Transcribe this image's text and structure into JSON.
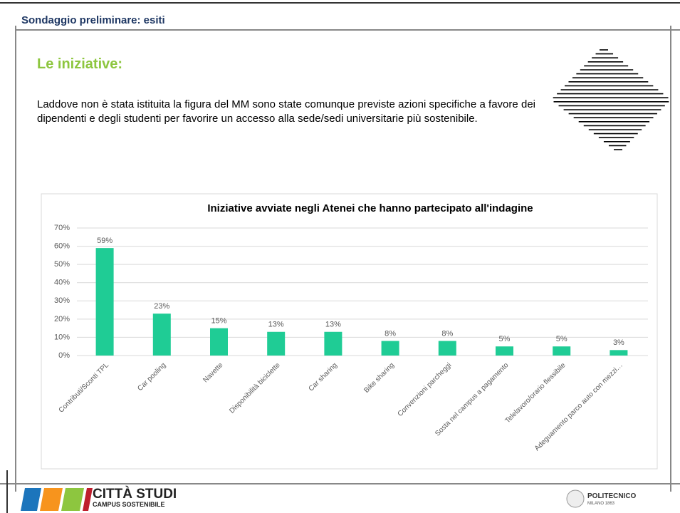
{
  "header": {
    "title": "Sondaggio preliminare: esiti"
  },
  "section_title": "Le iniziative:",
  "paragraph": "Laddove non è stata istituita la figura del MM sono state comunque previste azioni specifiche a favore dei dipendenti e degli studenti per favorire un accesso alla sede/sedi universitarie più sostenibile.",
  "footer": {
    "left_logo": [
      "CITTÀ STUDI",
      "CAMPUS SOSTENIBILE"
    ],
    "right_logo": [
      "POLITECNICO",
      "MILANO 1863"
    ]
  },
  "chart_data": {
    "type": "bar",
    "title": "Iniziative avviate negli Atenei che hanno partecipato all'indagine",
    "categories": [
      "Contributi/Sconti TPL",
      "Car pooling",
      "Navette",
      "Disponibilità biciclette",
      "Car sharing",
      "Bike sharing",
      "Convenzioni parcheggi",
      "Sosta nel campus a pagamento",
      "Telelavoro/orario flessibile",
      "Adeguamento parco auto con mezzi…"
    ],
    "values": [
      59,
      23,
      15,
      13,
      13,
      8,
      8,
      5,
      5,
      3
    ],
    "value_labels": [
      "59%",
      "23%",
      "15%",
      "13%",
      "13%",
      "8%",
      "8%",
      "5%",
      "5%",
      "3%"
    ],
    "color": "#1fcc95",
    "ylim": [
      0,
      70
    ],
    "yticks": [
      {
        "value": 0,
        "label": "0%"
      },
      {
        "value": 10,
        "label": "10%"
      },
      {
        "value": 20,
        "label": "20%"
      },
      {
        "value": 30,
        "label": "30%"
      },
      {
        "value": 40,
        "label": "40%"
      },
      {
        "value": 50,
        "label": "50%"
      },
      {
        "value": 60,
        "label": "60%"
      },
      {
        "value": 70,
        "label": "70%"
      }
    ],
    "grid": true
  }
}
